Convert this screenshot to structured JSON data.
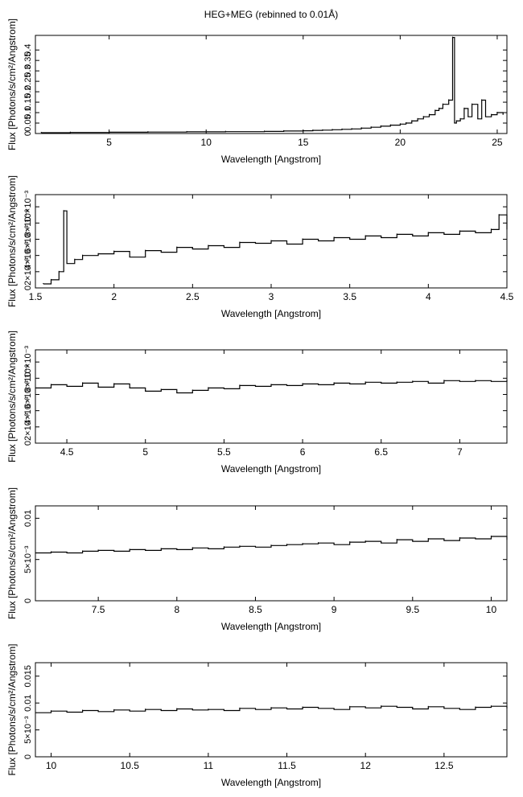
{
  "title": "HEG+MEG (rebinned to 0.01Å)",
  "chart_data": [
    {
      "type": "line",
      "xlabel": "Wavelength [Angstrom]",
      "ylabel": "Flux [Photons/s/cm²/Angstrom]",
      "xlim": [
        1.2,
        25.5
      ],
      "ylim": [
        0,
        0.47
      ],
      "xticks": [
        "5",
        "10",
        "15",
        "20",
        "25"
      ],
      "xtick_values": [
        5,
        10,
        15,
        20,
        25
      ],
      "yticks": [
        "0",
        "0.05",
        "0.1",
        "0.15",
        "0.2",
        "0.25",
        "0.3",
        "0.35",
        "0.4"
      ],
      "ytick_values": [
        0,
        0.05,
        0.1,
        0.15,
        0.2,
        0.25,
        0.3,
        0.35,
        0.4
      ],
      "series": [
        {
          "x": [
            1.5,
            3,
            5,
            7,
            9,
            11,
            13,
            14,
            15,
            15.5,
            16,
            16.5,
            17,
            17.5,
            18,
            18.5,
            19,
            19.5,
            20,
            20.3,
            20.6,
            20.9,
            21.2,
            21.5,
            21.8,
            22.0,
            22.2,
            22.5,
            22.7,
            22.8,
            22.9,
            23.1,
            23.3,
            23.5,
            23.7,
            24.0,
            24.2,
            24.4,
            24.7,
            25.0,
            25.3
          ],
          "y": [
            0.004,
            0.005,
            0.006,
            0.007,
            0.008,
            0.009,
            0.01,
            0.012,
            0.013,
            0.015,
            0.016,
            0.018,
            0.02,
            0.022,
            0.026,
            0.03,
            0.035,
            0.04,
            0.045,
            0.05,
            0.06,
            0.07,
            0.08,
            0.09,
            0.11,
            0.12,
            0.14,
            0.16,
            0.46,
            0.05,
            0.06,
            0.07,
            0.12,
            0.08,
            0.14,
            0.07,
            0.16,
            0.08,
            0.09,
            0.1,
            0.09
          ]
        }
      ]
    },
    {
      "type": "line",
      "xlabel": "Wavelength [Angstrom]",
      "ylabel": "Flux [Photons/s/cm²/Angstrom]",
      "xlim": [
        1.5,
        4.5
      ],
      "ylim": [
        0,
        0.0115
      ],
      "xticks": [
        "1.5",
        "2",
        "2.5",
        "3",
        "3.5",
        "4",
        "4.5"
      ],
      "xtick_values": [
        1.5,
        2,
        2.5,
        3,
        3.5,
        4,
        4.5
      ],
      "yticks": [
        "0",
        "2×10⁻³",
        "4×10⁻³",
        "6×10⁻³",
        "8×10⁻³",
        "10×10⁻³"
      ],
      "ytick_values": [
        0,
        0.002,
        0.004,
        0.006,
        0.008,
        0.01
      ],
      "series": [
        {
          "x": [
            1.55,
            1.6,
            1.65,
            1.68,
            1.7,
            1.75,
            1.8,
            1.9,
            2.0,
            2.1,
            2.2,
            2.3,
            2.4,
            2.5,
            2.6,
            2.7,
            2.8,
            2.9,
            3.0,
            3.1,
            3.2,
            3.3,
            3.4,
            3.5,
            3.6,
            3.7,
            3.8,
            3.9,
            4.0,
            4.1,
            4.2,
            4.3,
            4.4,
            4.45,
            4.5
          ],
          "y": [
            0.0005,
            0.001,
            0.002,
            0.0095,
            0.003,
            0.0035,
            0.004,
            0.0042,
            0.0045,
            0.0038,
            0.0046,
            0.0044,
            0.005,
            0.0048,
            0.0052,
            0.005,
            0.0056,
            0.0055,
            0.0058,
            0.0054,
            0.006,
            0.0058,
            0.0062,
            0.006,
            0.0064,
            0.0062,
            0.0066,
            0.0064,
            0.0068,
            0.0066,
            0.007,
            0.0068,
            0.0072,
            0.009,
            0.0072
          ]
        }
      ]
    },
    {
      "type": "line",
      "xlabel": "Wavelength [Angstrom]",
      "ylabel": "Flux [Photons/s/cm²/Angstrom]",
      "xlim": [
        4.3,
        7.3
      ],
      "ylim": [
        0,
        0.0115
      ],
      "xticks": [
        "4.5",
        "5",
        "5.5",
        "6",
        "6.5",
        "7"
      ],
      "xtick_values": [
        4.5,
        5,
        5.5,
        6,
        6.5,
        7
      ],
      "yticks": [
        "0",
        "2×10⁻³",
        "4×10⁻³",
        "6×10⁻³",
        "8×10⁻³",
        "10×10⁻³"
      ],
      "ytick_values": [
        0,
        0.002,
        0.004,
        0.006,
        0.008,
        0.01
      ],
      "series": [
        {
          "x": [
            4.3,
            4.4,
            4.5,
            4.6,
            4.7,
            4.8,
            4.9,
            5.0,
            5.1,
            5.2,
            5.3,
            5.4,
            5.5,
            5.6,
            5.7,
            5.8,
            5.9,
            6.0,
            6.1,
            6.2,
            6.3,
            6.4,
            6.5,
            6.6,
            6.7,
            6.8,
            6.9,
            7.0,
            7.1,
            7.2,
            7.3
          ],
          "y": [
            0.0068,
            0.0072,
            0.007,
            0.0074,
            0.0069,
            0.0073,
            0.0068,
            0.0064,
            0.0066,
            0.0062,
            0.0065,
            0.0068,
            0.0067,
            0.0071,
            0.007,
            0.0072,
            0.0071,
            0.0073,
            0.0072,
            0.0074,
            0.0073,
            0.0075,
            0.0074,
            0.0075,
            0.0076,
            0.0074,
            0.0077,
            0.0076,
            0.0077,
            0.0076,
            0.0078
          ]
        }
      ]
    },
    {
      "type": "line",
      "xlabel": "Wavelength [Angstrom]",
      "ylabel": "Flux [Photons/s/cm²/Angstrom]",
      "xlim": [
        7.1,
        10.1
      ],
      "ylim": [
        0,
        0.0115
      ],
      "xticks": [
        "7.5",
        "8",
        "8.5",
        "9",
        "9.5",
        "10"
      ],
      "xtick_values": [
        7.5,
        8,
        8.5,
        9,
        9.5,
        10
      ],
      "yticks": [
        "0",
        "5×10⁻³",
        "0.01"
      ],
      "ytick_values": [
        0,
        0.005,
        0.01
      ],
      "series": [
        {
          "x": [
            7.1,
            7.2,
            7.3,
            7.4,
            7.5,
            7.6,
            7.7,
            7.8,
            7.9,
            8.0,
            8.1,
            8.2,
            8.3,
            8.4,
            8.5,
            8.6,
            8.7,
            8.8,
            8.9,
            9.0,
            9.1,
            9.2,
            9.3,
            9.4,
            9.5,
            9.6,
            9.7,
            9.8,
            9.9,
            10.0,
            10.1
          ],
          "y": [
            0.0058,
            0.0059,
            0.0058,
            0.006,
            0.0061,
            0.006,
            0.0062,
            0.0061,
            0.0063,
            0.0062,
            0.0064,
            0.0063,
            0.0065,
            0.0066,
            0.0065,
            0.0067,
            0.0068,
            0.0069,
            0.007,
            0.0068,
            0.0071,
            0.0072,
            0.007,
            0.0074,
            0.0072,
            0.0075,
            0.0073,
            0.0076,
            0.0075,
            0.0078,
            0.0074
          ]
        }
      ]
    },
    {
      "type": "line",
      "xlabel": "Wavelength [Angstrom]",
      "ylabel": "Flux [Photons/s/cm²/Angstrom]",
      "xlim": [
        9.9,
        12.9
      ],
      "ylim": [
        0,
        0.0175
      ],
      "xticks": [
        "10",
        "10.5",
        "11",
        "11.5",
        "12",
        "12.5"
      ],
      "xtick_values": [
        10,
        10.5,
        11,
        11.5,
        12,
        12.5
      ],
      "yticks": [
        "0",
        "5×10⁻³",
        "0.01",
        "0.015"
      ],
      "ytick_values": [
        0,
        0.005,
        0.01,
        0.015
      ],
      "series": [
        {
          "x": [
            9.9,
            10.0,
            10.1,
            10.2,
            10.3,
            10.4,
            10.5,
            10.6,
            10.7,
            10.8,
            10.9,
            11.0,
            11.1,
            11.2,
            11.3,
            11.4,
            11.5,
            11.6,
            11.7,
            11.8,
            11.9,
            12.0,
            12.1,
            12.2,
            12.3,
            12.4,
            12.5,
            12.6,
            12.7,
            12.8,
            12.9
          ],
          "y": [
            0.0082,
            0.0085,
            0.0083,
            0.0086,
            0.0084,
            0.0087,
            0.0085,
            0.0088,
            0.0086,
            0.0089,
            0.0087,
            0.0088,
            0.0086,
            0.009,
            0.0088,
            0.0091,
            0.0089,
            0.0092,
            0.009,
            0.0088,
            0.0093,
            0.0091,
            0.0094,
            0.0092,
            0.0089,
            0.0093,
            0.009,
            0.0088,
            0.0092,
            0.0094,
            0.009
          ]
        }
      ]
    }
  ]
}
